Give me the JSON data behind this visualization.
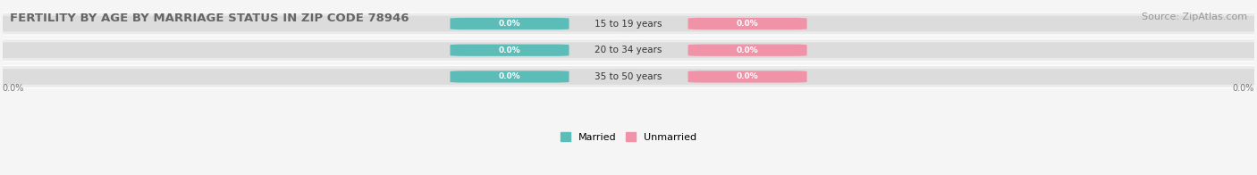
{
  "title": "FERTILITY BY AGE BY MARRIAGE STATUS IN ZIP CODE 78946",
  "source": "Source: ZipAtlas.com",
  "categories": [
    "15 to 19 years",
    "20 to 34 years",
    "35 to 50 years"
  ],
  "married_values": [
    0.0,
    0.0,
    0.0
  ],
  "unmarried_values": [
    0.0,
    0.0,
    0.0
  ],
  "married_color": "#5bbcb8",
  "unmarried_color": "#f093a8",
  "row_bg_color": "#ebebeb",
  "bar_bg_color": "#e0e0e0",
  "title_fontsize": 9.5,
  "source_fontsize": 8,
  "figsize": [
    14.06,
    1.96
  ],
  "dpi": 100
}
